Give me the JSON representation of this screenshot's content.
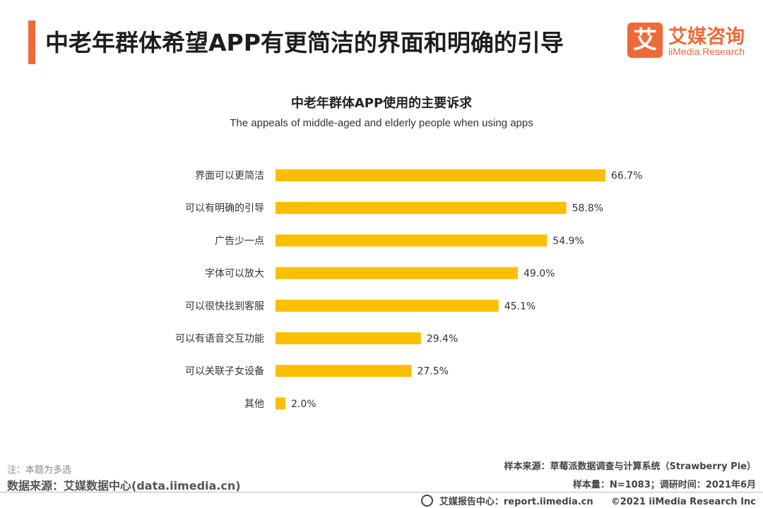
{
  "header": {
    "title": "中老年群体希望APP有更简洁的界面和明确的引导",
    "logo_mark": "艾",
    "logo_cn": "艾媒咨询",
    "logo_en": "iiMedia Research"
  },
  "chart_data": {
    "type": "bar",
    "orientation": "horizontal",
    "title": "中老年群体APP使用的主要诉求",
    "subtitle": "The appeals of middle-aged and elderly people when using apps",
    "categories": [
      "界面可以更简洁",
      "可以有明确的引导",
      "广告少一点",
      "字体可以放大",
      "可以很快找到客服",
      "可以有语音交互功能",
      "可以关联子女设备",
      "其他"
    ],
    "values": [
      66.7,
      58.8,
      54.9,
      49.0,
      45.1,
      29.4,
      27.5,
      2.0
    ],
    "value_labels": [
      "66.7%",
      "58.8%",
      "54.9%",
      "49.0%",
      "45.1%",
      "29.4%",
      "27.5%",
      "2.0%"
    ],
    "xlim": [
      0,
      100
    ],
    "grid": false,
    "bar_color": "#fbbf00"
  },
  "footer": {
    "note": "注：本题为多选",
    "source": "数据来源：艾媒数据中心(data.iimedia.cn)",
    "sample_source": "样本来源：草莓派数据调查与计算系统（Strawberry Pie）",
    "sample_size": "样本量：N=1083；调研时间：2021年6月",
    "site": "艾媒报告中心：report.iimedia.cn",
    "copyright": "©2021  iiMedia Research  Inc"
  }
}
